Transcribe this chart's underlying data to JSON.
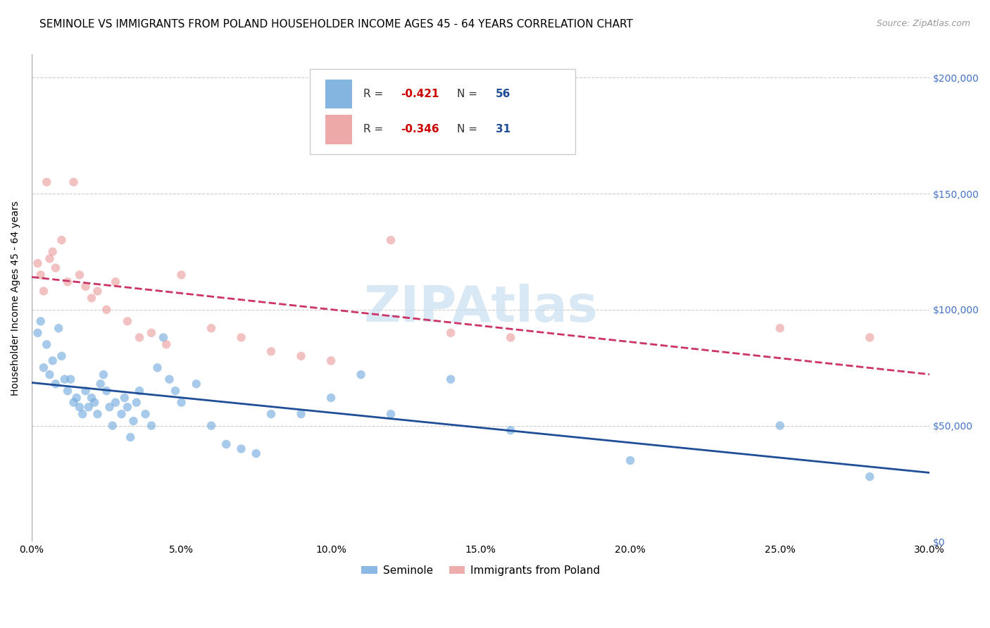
{
  "title": "SEMINOLE VS IMMIGRANTS FROM POLAND HOUSEHOLDER INCOME AGES 45 - 64 YEARS CORRELATION CHART",
  "source": "Source: ZipAtlas.com",
  "ylabel": "Householder Income Ages 45 - 64 years",
  "xlabel_ticks": [
    "0.0%",
    "5.0%",
    "10.0%",
    "15.0%",
    "20.0%",
    "25.0%",
    "30.0%"
  ],
  "xlabel_vals": [
    0.0,
    0.05,
    0.1,
    0.15,
    0.2,
    0.25,
    0.3
  ],
  "ylim": [
    0,
    210000
  ],
  "xlim": [
    0.0,
    0.3
  ],
  "ytick_vals": [
    0,
    50000,
    100000,
    150000,
    200000
  ],
  "seminole_color": "#6fa8dc",
  "poland_color": "#ea9999",
  "seminole_line_color": "#1f4e96",
  "poland_line_color": "#cc3366",
  "background_color": "#ffffff",
  "grid_color": "#cccccc",
  "r_color": "#cc0000",
  "n_color": "#1f4e96",
  "legend_r_seminole": "-0.421",
  "legend_n_seminole": "56",
  "legend_r_poland": "-0.346",
  "legend_n_poland": "31",
  "seminole_x": [
    0.002,
    0.003,
    0.004,
    0.005,
    0.006,
    0.007,
    0.008,
    0.009,
    0.01,
    0.011,
    0.012,
    0.013,
    0.014,
    0.015,
    0.016,
    0.017,
    0.018,
    0.019,
    0.02,
    0.021,
    0.022,
    0.023,
    0.024,
    0.025,
    0.026,
    0.027,
    0.028,
    0.03,
    0.031,
    0.032,
    0.033,
    0.034,
    0.035,
    0.036,
    0.038,
    0.04,
    0.042,
    0.044,
    0.046,
    0.048,
    0.05,
    0.055,
    0.06,
    0.065,
    0.07,
    0.075,
    0.08,
    0.09,
    0.1,
    0.11,
    0.12,
    0.14,
    0.16,
    0.2,
    0.25,
    0.28
  ],
  "seminole_y": [
    90000,
    95000,
    75000,
    85000,
    72000,
    78000,
    68000,
    92000,
    80000,
    70000,
    65000,
    70000,
    60000,
    62000,
    58000,
    55000,
    65000,
    58000,
    62000,
    60000,
    55000,
    68000,
    72000,
    65000,
    58000,
    50000,
    60000,
    55000,
    62000,
    58000,
    45000,
    52000,
    60000,
    65000,
    55000,
    50000,
    75000,
    88000,
    70000,
    65000,
    60000,
    68000,
    50000,
    42000,
    40000,
    38000,
    55000,
    55000,
    62000,
    72000,
    55000,
    70000,
    48000,
    35000,
    50000,
    28000
  ],
  "poland_x": [
    0.002,
    0.003,
    0.004,
    0.005,
    0.006,
    0.007,
    0.008,
    0.01,
    0.012,
    0.014,
    0.016,
    0.018,
    0.02,
    0.022,
    0.025,
    0.028,
    0.032,
    0.036,
    0.04,
    0.045,
    0.05,
    0.06,
    0.07,
    0.08,
    0.09,
    0.1,
    0.12,
    0.14,
    0.16,
    0.25,
    0.28
  ],
  "poland_y": [
    120000,
    115000,
    108000,
    155000,
    122000,
    125000,
    118000,
    130000,
    112000,
    155000,
    115000,
    110000,
    105000,
    108000,
    100000,
    112000,
    95000,
    88000,
    90000,
    85000,
    115000,
    92000,
    88000,
    82000,
    80000,
    78000,
    130000,
    90000,
    88000,
    92000,
    88000
  ],
  "title_fontsize": 11,
  "axis_label_fontsize": 10,
  "tick_fontsize": 10,
  "legend_fontsize": 11,
  "source_fontsize": 9,
  "marker_size": 80,
  "marker_alpha": 0.6,
  "line_width": 2.0,
  "watermark_text": "ZIPAtlas",
  "watermark_color": "#c8dff0",
  "watermark_fontsize": 52
}
